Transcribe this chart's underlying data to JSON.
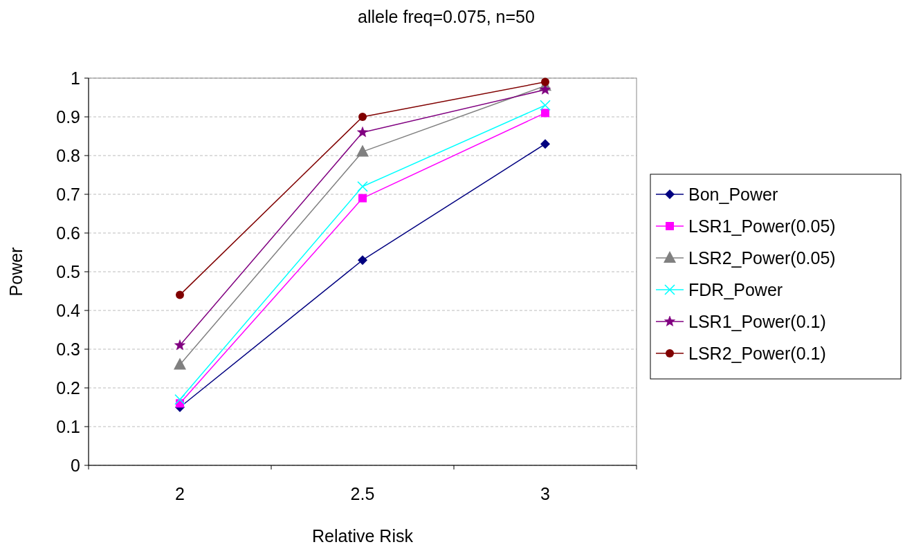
{
  "chart_data": {
    "type": "line",
    "title": "allele freq=0.075, n=50",
    "xlabel": "Relative Risk",
    "ylabel": "Power",
    "categories": [
      "2",
      "2.5",
      "3"
    ],
    "ylim": [
      0,
      1
    ],
    "yticks": [
      0,
      0.1,
      0.2,
      0.3,
      0.4,
      0.5,
      0.6,
      0.7,
      0.8,
      0.9,
      1
    ],
    "grid": "y",
    "legend": "right",
    "series": [
      {
        "name": "Bon_Power",
        "color": "#000080",
        "marker": "diamond",
        "values": [
          0.15,
          0.53,
          0.83
        ]
      },
      {
        "name": "LSR1_Power(0.05)",
        "color": "#ff00ff",
        "marker": "square",
        "values": [
          0.16,
          0.69,
          0.91
        ]
      },
      {
        "name": "LSR2_Power(0.05)",
        "color": "#808080",
        "marker": "triangle",
        "values": [
          0.26,
          0.81,
          0.98
        ]
      },
      {
        "name": "FDR_Power",
        "color": "#00ffff",
        "marker": "cross",
        "values": [
          0.17,
          0.72,
          0.93
        ]
      },
      {
        "name": "LSR1_Power(0.1)",
        "color": "#800080",
        "marker": "star",
        "values": [
          0.31,
          0.86,
          0.97
        ]
      },
      {
        "name": "LSR2_Power(0.1)",
        "color": "#800000",
        "marker": "circle",
        "values": [
          0.44,
          0.9,
          0.99
        ]
      }
    ]
  }
}
